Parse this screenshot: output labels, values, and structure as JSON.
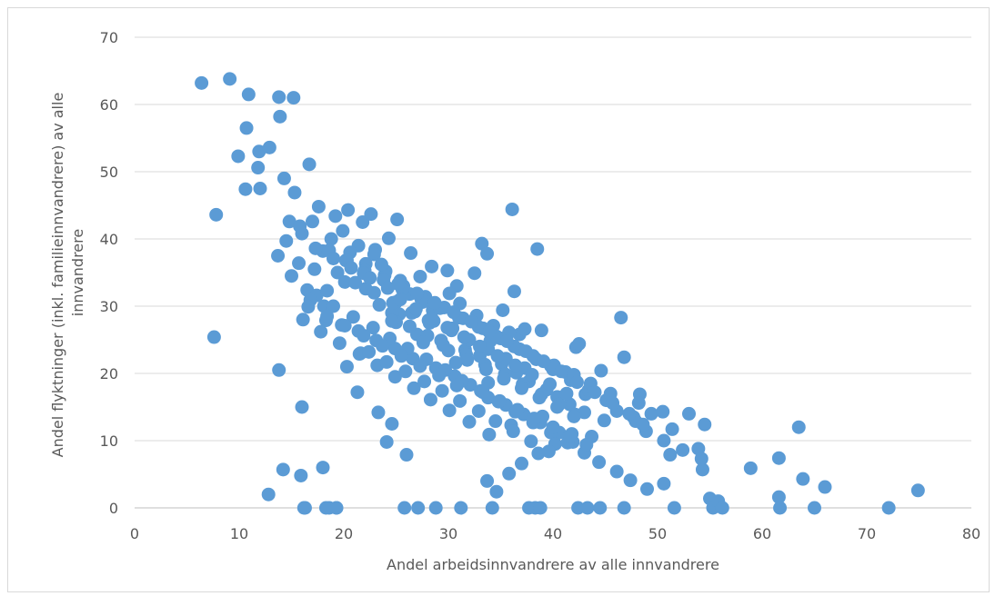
{
  "chart_data": {
    "type": "scatter",
    "title": "",
    "xlabel": "Andel arbeidsinnvandrere av alle innvandrere",
    "ylabel": "Andel flyktninger (inkl. familieinnvandrere) av alle innvandrere",
    "ylabel_lines": [
      "Andel flyktninger (inkl. familieinnvandrere) av alle",
      "innvandrere"
    ],
    "xlim": [
      0,
      80
    ],
    "ylim": [
      0,
      70
    ],
    "xticks": [
      0,
      10,
      20,
      30,
      40,
      50,
      60,
      70,
      80
    ],
    "yticks": [
      0,
      10,
      20,
      30,
      40,
      50,
      60,
      70
    ],
    "x_tick_labels": [
      "0",
      "10",
      "20",
      "30",
      "40",
      "50",
      "60",
      "70",
      "80"
    ],
    "y_tick_labels": [
      "0",
      "10",
      "20",
      "30",
      "40",
      "50",
      "60",
      "70"
    ],
    "grid": "horizontal",
    "legend": "none",
    "marker_color": "#5b9bd5",
    "series": [
      {
        "x": [
          6.4,
          9.1,
          10.9,
          13.8,
          15.2,
          13.9,
          10.7,
          12.9,
          9.9,
          11.9,
          11.8,
          10.6,
          16.7,
          7.8,
          12.0,
          7.6,
          13.8,
          16.0,
          12.8,
          14.2,
          15.9,
          18.0,
          16.2,
          18.6,
          19.3,
          20.3,
          21.3,
          23.3,
          24.6,
          26.0,
          24.1,
          21.6,
          18.3,
          16.1,
          15.7,
          14.8,
          15.3,
          17.6,
          19.2,
          20.4,
          21.8,
          22.6,
          23.0,
          25.1,
          24.3,
          26.4,
          27.3,
          28.4,
          29.9,
          30.8,
          32.5,
          33.2,
          33.7,
          36.1,
          36.3,
          38.5,
          35.2,
          34.1,
          36.8,
          37.3,
          38.9,
          39.8,
          41.2,
          42.2,
          42.5,
          43.1,
          44.6,
          46.5,
          46.8,
          47.7,
          48.3,
          49.4,
          50.6,
          51.2,
          51.4,
          53.0,
          53.9,
          54.3,
          54.5,
          55.0,
          55.3,
          55.8,
          56.2,
          58.9,
          61.6,
          61.6,
          61.7,
          63.5,
          63.9,
          65.0,
          66.0,
          72.1,
          74.9,
          16.3,
          18.3,
          19.3,
          25.8,
          27.1,
          28.8,
          31.2,
          34.2,
          37.7,
          38.3,
          38.8,
          42.4,
          43.3,
          44.5,
          46.8,
          51.6,
          13.7,
          16.0,
          14.3,
          18.0,
          20.2,
          17.2,
          19.9,
          21.4,
          22.9,
          24.0,
          22.1,
          25.4,
          26.3,
          27.5,
          28.5,
          30.1,
          31.1,
          32.7,
          34.3,
          35.8,
          34.0,
          30.4,
          28.1,
          25.3,
          23.4,
          24.6,
          25.0,
          27.0,
          29.3,
          31.6,
          33.0,
          35.1,
          36.5,
          37.7,
          39.4,
          40.4,
          41.6,
          43.0,
          44.9,
          43.7,
          41.9,
          40.6,
          38.8,
          37.2,
          35.5,
          33.8,
          32.1,
          30.6,
          28.8,
          26.6,
          24.9,
          23.1,
          21.4,
          19.8,
          18.1,
          16.5,
          15.0,
          14.5,
          15.8,
          17.0,
          18.8,
          20.6,
          22.1,
          23.9,
          25.7,
          27.8,
          29.6,
          31.4,
          33.3,
          35.0,
          36.8,
          38.4,
          40.0,
          41.7,
          43.4,
          45.1,
          46.1,
          47.9,
          48.9,
          50.6,
          52.4,
          54.2,
          50.5,
          48.2,
          45.5,
          43.6,
          42.0,
          40.1,
          38.1,
          36.3,
          34.6,
          32.9,
          31.0,
          29.2,
          27.4,
          25.6,
          23.8,
          22.0,
          20.3,
          18.6,
          17.4,
          19.0,
          20.9,
          22.8,
          24.4,
          26.1,
          27.9,
          29.7,
          31.3,
          33.1,
          34.8,
          36.4,
          38.1,
          39.8,
          41.4,
          43.0,
          44.4,
          46.1,
          47.4,
          49.0,
          34.6,
          33.7,
          35.8,
          37.0,
          38.6,
          40.2,
          41.8,
          39.0,
          36.0,
          33.9,
          32.0,
          30.1,
          28.3,
          26.7,
          24.9,
          23.2,
          21.5,
          19.6,
          17.8,
          16.8,
          18.4,
          20.1,
          21.9,
          23.6,
          25.2,
          27.0,
          28.7,
          30.5,
          32.2,
          33.9,
          35.6,
          37.4,
          39.1,
          40.8,
          42.3,
          44.0,
          45.7,
          47.3,
          48.6,
          26.3,
          28.0,
          29.5,
          31.7,
          33.5,
          35.4,
          37.1,
          38.9,
          40.6,
          42.1,
          22.4,
          24.1,
          25.9,
          27.7,
          29.4,
          31.1,
          32.9,
          34.5,
          36.2,
          37.9,
          39.6,
          25.0,
          26.8,
          28.6,
          30.3,
          32.0,
          33.8,
          35.5,
          37.3,
          30.8,
          29.1,
          27.3,
          25.5,
          23.7,
          21.9,
          20.1,
          18.4,
          16.6,
          33.3,
          34.9,
          36.6,
          38.2,
          40.0,
          41.6,
          43.2,
          24.2,
          22.5,
          20.7,
          19.0,
          17.3,
          30.0,
          31.8,
          33.6,
          35.3,
          37.0,
          38.7,
          40.4,
          42.0,
          28.2,
          26.5,
          24.7,
          22.9,
          21.1,
          19.4,
          25.4,
          26.9,
          28.4,
          29.9,
          31.5,
          33.0,
          34.7,
          36.4,
          38.0,
          39.7,
          41.3,
          24.6,
          27.6,
          30.7,
          33.8
        ],
        "y": [
          63.2,
          63.8,
          61.5,
          61.1,
          61.0,
          58.2,
          56.5,
          53.6,
          52.3,
          53.0,
          50.6,
          47.4,
          51.1,
          43.6,
          47.5,
          25.4,
          20.5,
          15.0,
          2.0,
          5.7,
          4.8,
          6.0,
          0.0,
          0.0,
          0.0,
          21.0,
          17.2,
          14.2,
          12.5,
          7.9,
          9.8,
          23.0,
          27.9,
          28.0,
          36.4,
          42.6,
          46.9,
          44.8,
          43.4,
          44.3,
          42.5,
          43.7,
          38.4,
          42.9,
          40.1,
          37.9,
          34.4,
          35.9,
          35.3,
          33.0,
          34.9,
          39.3,
          37.8,
          44.4,
          32.2,
          38.5,
          29.4,
          26.2,
          25.8,
          26.6,
          26.4,
          21.1,
          20.2,
          23.9,
          24.4,
          16.9,
          20.4,
          28.3,
          22.4,
          13.5,
          16.9,
          14.0,
          3.6,
          7.9,
          11.7,
          14.0,
          8.8,
          5.7,
          12.4,
          1.4,
          0.0,
          1.0,
          0.0,
          5.9,
          7.4,
          1.6,
          0.0,
          12.0,
          4.3,
          0.0,
          3.1,
          0.0,
          2.6,
          0.0,
          0.0,
          0.0,
          0.0,
          0.0,
          0.0,
          0.0,
          0.0,
          0.0,
          0.0,
          0.0,
          0.0,
          0.0,
          0.0,
          0.0,
          0.0,
          37.5,
          40.8,
          49.0,
          38.2,
          36.8,
          35.5,
          41.2,
          39.0,
          37.7,
          35.2,
          32.6,
          33.8,
          31.8,
          30.6,
          29.4,
          31.9,
          30.4,
          28.6,
          27.1,
          26.1,
          24.8,
          26.7,
          27.9,
          28.8,
          30.2,
          29.0,
          27.6,
          25.8,
          24.9,
          23.5,
          22.6,
          21.4,
          20.1,
          18.8,
          17.6,
          16.5,
          15.4,
          14.2,
          13.0,
          10.6,
          9.8,
          11.2,
          12.7,
          13.9,
          15.3,
          16.4,
          18.3,
          19.6,
          20.8,
          22.2,
          23.7,
          24.9,
          26.3,
          27.2,
          30.0,
          32.4,
          34.5,
          39.7,
          41.9,
          42.6,
          40.0,
          38.0,
          36.3,
          34.6,
          33.0,
          31.4,
          29.8,
          28.2,
          26.7,
          25.2,
          23.6,
          22.1,
          20.6,
          19.0,
          17.5,
          16.0,
          14.4,
          12.9,
          11.4,
          10.0,
          8.6,
          7.3,
          14.3,
          15.6,
          17.0,
          18.5,
          19.8,
          21.2,
          22.6,
          24.0,
          25.5,
          26.9,
          28.3,
          29.7,
          31.1,
          32.5,
          33.9,
          35.3,
          36.8,
          38.3,
          31.6,
          30.0,
          28.4,
          26.8,
          25.2,
          23.7,
          22.1,
          20.5,
          18.9,
          17.4,
          15.8,
          14.3,
          12.7,
          11.2,
          9.7,
          8.2,
          6.8,
          5.4,
          4.1,
          2.8,
          2.4,
          4.0,
          5.1,
          6.6,
          8.1,
          9.5,
          11.0,
          13.6,
          12.3,
          10.9,
          12.8,
          14.5,
          16.1,
          17.8,
          19.5,
          21.2,
          22.9,
          24.5,
          26.2,
          30.9,
          32.3,
          33.6,
          34.9,
          36.2,
          33.3,
          31.9,
          30.5,
          29.1,
          27.7,
          26.2,
          24.8,
          23.3,
          21.8,
          20.3,
          18.7,
          17.2,
          15.6,
          14.0,
          12.4,
          27.0,
          25.6,
          24.2,
          22.8,
          21.3,
          19.9,
          18.4,
          16.9,
          15.4,
          13.9,
          23.2,
          21.7,
          20.3,
          18.8,
          17.4,
          15.9,
          14.4,
          12.9,
          11.4,
          9.9,
          8.4,
          30.6,
          29.2,
          27.8,
          26.4,
          25.0,
          23.6,
          22.2,
          20.8,
          18.2,
          19.7,
          21.1,
          22.6,
          24.1,
          25.6,
          27.1,
          28.5,
          29.9,
          17.2,
          15.9,
          14.6,
          13.3,
          12.0,
          10.7,
          9.4,
          32.7,
          34.2,
          35.7,
          37.1,
          38.6,
          23.4,
          22.0,
          20.6,
          19.2,
          17.8,
          16.4,
          15.0,
          13.6,
          27.5,
          29.0,
          30.5,
          32.0,
          33.5,
          35.0,
          31.0,
          29.6,
          28.2,
          26.8,
          25.4,
          24.0,
          22.6,
          21.2,
          19.8,
          18.4,
          17.0,
          27.8,
          24.6,
          21.6,
          18.6
        ]
      }
    ]
  }
}
